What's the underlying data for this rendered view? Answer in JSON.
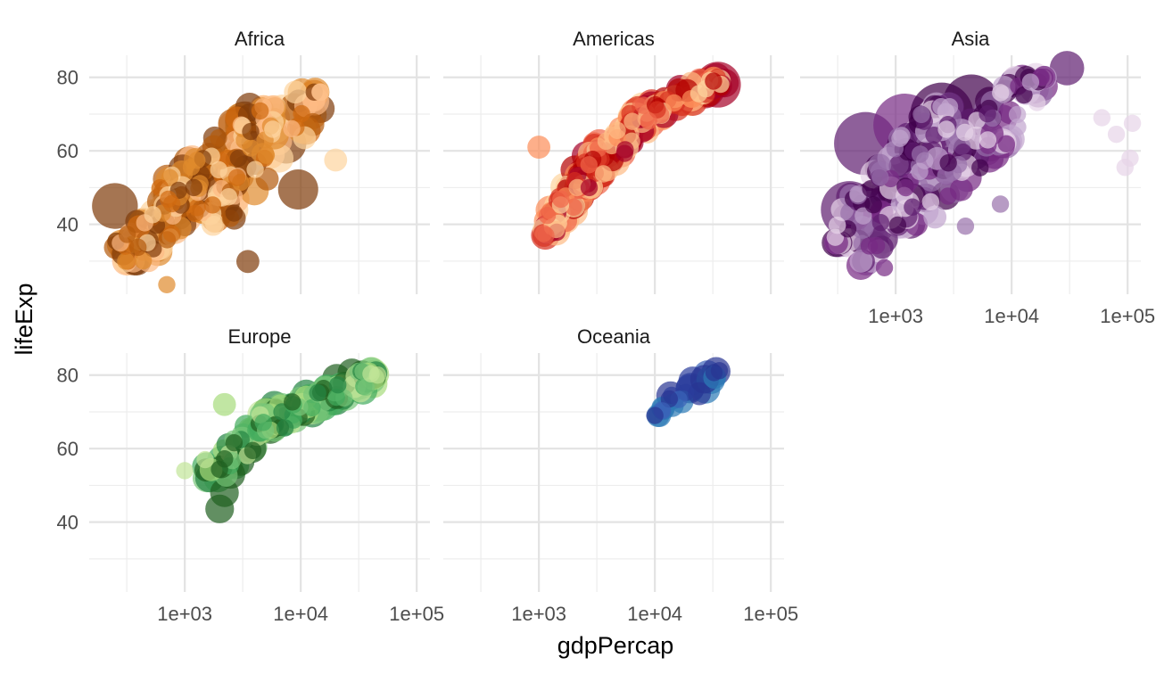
{
  "chart_data": {
    "type": "scatter",
    "xlabel": "gdpPercap",
    "ylabel": "lifeExp",
    "x_scale": "log10",
    "xlim": [
      150,
      130000
    ],
    "ylim": [
      21,
      86
    ],
    "x_ticks": [
      {
        "value": 1000,
        "label": "1e+03"
      },
      {
        "value": 10000,
        "label": "1e+04"
      },
      {
        "value": 100000,
        "label": "1e+05"
      }
    ],
    "y_ticks": [
      {
        "value": 40,
        "label": "40"
      },
      {
        "value": 60,
        "label": "60"
      },
      {
        "value": 80,
        "label": "80"
      }
    ],
    "grid": true,
    "legend": "none",
    "panels": [
      {
        "name": "Africa",
        "colors": [
          "#fdd49e",
          "#fdbb84",
          "#e08a2c",
          "#d06a0f",
          "#b35a0c",
          "#7f3b08"
        ],
        "clusters": [
          {
            "x": [
              300,
              3000
            ],
            "y": [
              30,
              58
            ],
            "n": 130
          },
          {
            "x": [
              600,
              6000
            ],
            "y": [
              45,
              72
            ],
            "n": 90
          },
          {
            "x": [
              1500,
              15000
            ],
            "y": [
              40,
              76
            ],
            "n": 70
          },
          {
            "x": [
              250,
              1200
            ],
            "y": [
              32,
              50
            ],
            "n": 50
          }
        ],
        "points": [
          {
            "x": 250,
            "y": 45,
            "size": 6,
            "c": 5
          },
          {
            "x": 700,
            "y": 23.6,
            "size": 1,
            "c": 2
          },
          {
            "x": 13000,
            "y": 74,
            "size": 2,
            "c": 1
          },
          {
            "x": 9000,
            "y": 76,
            "size": 2,
            "c": 0
          },
          {
            "x": 20000,
            "y": 57.5,
            "size": 2,
            "c": 0
          },
          {
            "x": 3500,
            "y": 29.9,
            "size": 2,
            "c": 5
          },
          {
            "x": 3300,
            "y": 68,
            "size": 5,
            "c": 5
          },
          {
            "x": 7500,
            "y": 62,
            "size": 5,
            "c": 5
          },
          {
            "x": 9500,
            "y": 49.5,
            "size": 5,
            "c": 5
          }
        ]
      },
      {
        "name": "Americas",
        "colors": [
          "#fdd49e",
          "#fdbb84",
          "#fc8d59",
          "#ef6548",
          "#d7301f",
          "#b30000",
          "#a50026"
        ],
        "clusters": [
          {
            "x": [
              1100,
              4000
            ],
            "y": [
              37,
              62
            ],
            "n": 70
          },
          {
            "x": [
              2000,
              10000
            ],
            "y": [
              50,
              72
            ],
            "n": 100
          },
          {
            "x": [
              6000,
              40000
            ],
            "y": [
              68,
              80
            ],
            "n": 80
          }
        ],
        "points": [
          {
            "x": 35000,
            "y": 78,
            "size": 6,
            "c": 6
          },
          {
            "x": 27000,
            "y": 77,
            "size": 5,
            "c": 6
          },
          {
            "x": 20000,
            "y": 75,
            "size": 4,
            "c": 6
          },
          {
            "x": 1100,
            "y": 37.5,
            "size": 1,
            "c": 3
          },
          {
            "x": 1000,
            "y": 61,
            "size": 2,
            "c": 2
          }
        ]
      },
      {
        "name": "Asia",
        "colors": [
          "#e7d4e8",
          "#c2a5cf",
          "#9970ab",
          "#762a83",
          "#5e1d6f",
          "#40004b"
        ],
        "clusters": [
          {
            "x": [
              300,
              3000
            ],
            "y": [
              35,
              72
            ],
            "n": 130
          },
          {
            "x": [
              1000,
              20000
            ],
            "y": [
              40,
              80
            ],
            "n": 110
          },
          {
            "x": [
              500,
              1500
            ],
            "y": [
              30,
              50
            ],
            "n": 30
          }
        ],
        "points": [
          {
            "x": 400,
            "y": 44,
            "size": 8,
            "c": 4
          },
          {
            "x": 550,
            "y": 62,
            "size": 9,
            "c": 4
          },
          {
            "x": 1200,
            "y": 67,
            "size": 9,
            "c": 3
          },
          {
            "x": 2500,
            "y": 70,
            "size": 9,
            "c": 5
          },
          {
            "x": 4500,
            "y": 73,
            "size": 8,
            "c": 5
          },
          {
            "x": 500,
            "y": 28.8,
            "size": 3,
            "c": 3
          },
          {
            "x": 800,
            "y": 28.2,
            "size": 1,
            "c": 3
          },
          {
            "x": 30000,
            "y": 82.5,
            "size": 4,
            "c": 4
          },
          {
            "x": 60000,
            "y": 69,
            "size": 1,
            "c": 0
          },
          {
            "x": 80000,
            "y": 64.5,
            "size": 1,
            "c": 0
          },
          {
            "x": 110000,
            "y": 67.5,
            "size": 1,
            "c": 0
          },
          {
            "x": 105000,
            "y": 58,
            "size": 1,
            "c": 0
          },
          {
            "x": 95000,
            "y": 55.5,
            "size": 1,
            "c": 0
          },
          {
            "x": 8000,
            "y": 45.5,
            "size": 1,
            "c": 2
          },
          {
            "x": 4000,
            "y": 39.5,
            "size": 1,
            "c": 2
          }
        ]
      },
      {
        "name": "Europe",
        "colors": [
          "#c2e699",
          "#a6db7c",
          "#78c679",
          "#41ab5d",
          "#238443",
          "#1f5f1f"
        ],
        "clusters": [
          {
            "x": [
              1500,
              8000
            ],
            "y": [
              52,
              72
            ],
            "n": 40
          },
          {
            "x": [
              4000,
              45000
            ],
            "y": [
              65,
              81
            ],
            "n": 140
          }
        ],
        "points": [
          {
            "x": 1000,
            "y": 54,
            "size": 1,
            "c": 0
          },
          {
            "x": 2000,
            "y": 43.6,
            "size": 3,
            "c": 5
          },
          {
            "x": 2200,
            "y": 48,
            "size": 3,
            "c": 5
          },
          {
            "x": 2500,
            "y": 53,
            "size": 3,
            "c": 5
          },
          {
            "x": 3000,
            "y": 56.5,
            "size": 3,
            "c": 5
          },
          {
            "x": 3800,
            "y": 60,
            "size": 3,
            "c": 5
          },
          {
            "x": 2200,
            "y": 72,
            "size": 2,
            "c": 1
          },
          {
            "x": 1500,
            "y": 57,
            "size": 1,
            "c": 0
          },
          {
            "x": 46000,
            "y": 80,
            "size": 1,
            "c": 0
          }
        ]
      },
      {
        "name": "Oceania",
        "colors": [
          "#2c7bb6",
          "#3a63b8",
          "#2b3d9c",
          "#283593"
        ],
        "clusters": [
          {
            "x": [
              10000,
              36000
            ],
            "y": [
              69,
              81
            ],
            "n": 24
          }
        ],
        "points": [
          {
            "x": 10000,
            "y": 69,
            "size": 1,
            "c": 3
          },
          {
            "x": 36000,
            "y": 81.2,
            "size": 1,
            "c": 3
          }
        ]
      }
    ]
  }
}
